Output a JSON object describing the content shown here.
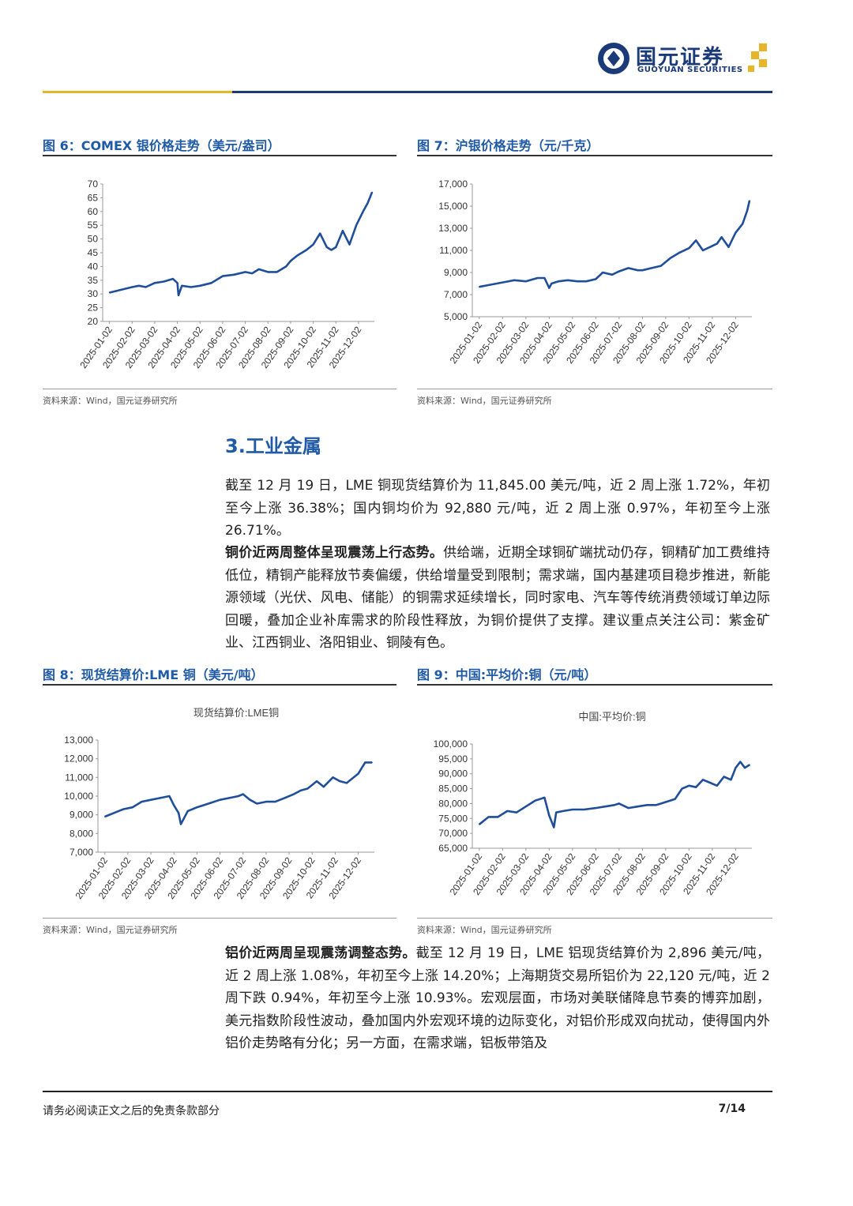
{
  "header": {
    "logo_cn": "国元证券",
    "logo_en": "GUOYUAN SECURITIES",
    "brand_color": "#1a3a78",
    "accent_color": "#e8b428"
  },
  "figures": {
    "fig6": {
      "title": "图 6：COMEX 银价格走势（美元/盎司）",
      "source": "资料来源：Wind，国元证券研究所"
    },
    "fig7": {
      "title": "图 7：沪银价格走势（元/千克）",
      "source": "资料来源：Wind，国元证券研究所"
    },
    "fig8": {
      "title": "图 8：现货结算价:LME 铜（美元/吨）",
      "source": "资料来源：Wind，国元证券研究所"
    },
    "fig9": {
      "title": "图 9：中国:平均价:铜（元/吨）",
      "source": "资料来源：Wind，国元证券研究所"
    }
  },
  "section": {
    "title": "3.工业金属"
  },
  "paragraphs": {
    "p1": "截至 12 月 19 日，LME 铜现货结算价为 11,845.00 美元/吨，近 2 周上涨 1.72%，年初至今上涨 36.38%；国内铜均价为 92,880 元/吨，近 2 周上涨 0.97%，年初至今上涨 26.71%。",
    "p2_bold": "铜价近两周整体呈现震荡上行态势。",
    "p2_rest": "供给端，近期全球铜矿端扰动仍存，铜精矿加工费维持低位，精铜产能释放节奏偏缓，供给增量受到限制；需求端，国内基建项目稳步推进，新能源领域（光伏、风电、储能）的铜需求延续增长，同时家电、汽车等传统消费领域订单边际回暖，叠加企业补库需求的阶段性释放，为铜价提供了支撑。建议重点关注公司：紫金矿业、江西铜业、洛阳钼业、铜陵有色。",
    "p3_bold": "铝价近两周呈现震荡调整态势。",
    "p3_rest": "截至 12 月 19 日，LME 铝现货结算价为 2,896 美元/吨，近 2 周上涨 1.08%，年初至今上涨 14.20%；上海期货交易所铝价为 22,120 元/吨，近 2 周下跌 0.94%，年初至今上涨 10.93%。宏观层面，市场对美联储降息节奏的博弈加剧，美元指数阶段性波动，叠加国内外宏观环境的边际变化，对铝价形成双向扰动，使得国内外铝价走势略有分化；另一方面，在需求端，铝板带箔及"
  },
  "footer": {
    "disclaimer": "请务必阅读正文之后的免责条款部分",
    "page": "7/14"
  },
  "chart_data": [
    {
      "id": "fig6",
      "type": "line",
      "title": "",
      "x_ticks": [
        "2025-01-02",
        "2025-02-02",
        "2025-03-02",
        "2025-04-02",
        "2025-05-02",
        "2025-06-02",
        "2025-07-02",
        "2025-08-02",
        "2025-09-02",
        "2025-10-02",
        "2025-11-02",
        "2025-12-02"
      ],
      "y_ticks": [
        "70",
        "65",
        "60",
        "55",
        "50",
        "45",
        "40",
        "35",
        "30",
        "25",
        "20"
      ],
      "ylim": [
        20,
        70
      ],
      "color": "#1f4e9a",
      "x": [
        0,
        0.5,
        1,
        1.3,
        1.6,
        2,
        2.4,
        2.8,
        3.0,
        3.05,
        3.2,
        3.6,
        4,
        4.5,
        5,
        5.5,
        6,
        6.3,
        6.6,
        7,
        7.4,
        7.8,
        8,
        8.3,
        8.7,
        9,
        9.3,
        9.6,
        9.8,
        10,
        10.3,
        10.6,
        10.9,
        11.2,
        11.4,
        11.6
      ],
      "y": [
        30.5,
        31.5,
        32.5,
        33,
        32.5,
        34,
        34.5,
        35.5,
        34,
        29.5,
        33,
        32.5,
        33,
        34,
        36.5,
        37,
        38,
        37.5,
        39,
        38,
        38,
        40,
        42,
        44,
        46,
        48,
        52,
        47,
        46,
        47,
        53,
        48,
        55,
        60,
        63,
        67
      ],
      "series": [
        {
          "name": ""
        }
      ]
    },
    {
      "id": "fig7",
      "type": "line",
      "title": "",
      "x_ticks": [
        "2025-01-02",
        "2025-02-02",
        "2025-03-02",
        "2025-04-02",
        "2025-05-02",
        "2025-06-02",
        "2025-07-02",
        "2025-08-02",
        "2025-09-02",
        "2025-10-02",
        "2025-11-02",
        "2025-12-02"
      ],
      "y_ticks": [
        "17,000",
        "15,000",
        "13,000",
        "11,000",
        "9,000",
        "7,000",
        "5,000"
      ],
      "ylim": [
        5000,
        17000
      ],
      "color": "#1f4e9a",
      "x": [
        0,
        0.5,
        1,
        1.5,
        2,
        2.5,
        2.8,
        3.0,
        3.1,
        3.4,
        3.8,
        4.2,
        4.6,
        5,
        5.3,
        5.7,
        6,
        6.4,
        6.8,
        7,
        7.4,
        7.8,
        8.2,
        8.6,
        9,
        9.3,
        9.6,
        9.9,
        10.2,
        10.4,
        10.7,
        11,
        11.3,
        11.5,
        11.6
      ],
      "y": [
        7700,
        7900,
        8100,
        8300,
        8200,
        8500,
        8500,
        7600,
        8000,
        8200,
        8300,
        8200,
        8200,
        8400,
        9000,
        8800,
        9100,
        9400,
        9200,
        9200,
        9400,
        9600,
        10300,
        10800,
        11200,
        11900,
        11000,
        11300,
        11600,
        12200,
        11300,
        12600,
        13400,
        14600,
        15500
      ],
      "series": [
        {
          "name": ""
        }
      ]
    },
    {
      "id": "fig8",
      "type": "line",
      "title": "现货结算价:LME铜",
      "x_ticks": [
        "2025-01-02",
        "2025-02-02",
        "2025-03-02",
        "2025-04-02",
        "2025-05-02",
        "2025-06-02",
        "2025-07-02",
        "2025-08-02",
        "2025-09-02",
        "2025-10-02",
        "2025-11-02",
        "2025-12-02"
      ],
      "y_ticks": [
        "13,000",
        "12,000",
        "11,000",
        "10,000",
        "9,000",
        "8,000",
        "7,000"
      ],
      "ylim": [
        7000,
        13000
      ],
      "color": "#1f4e9a",
      "x": [
        0,
        0.4,
        0.8,
        1.2,
        1.6,
        2,
        2.4,
        2.8,
        3.0,
        3.2,
        3.3,
        3.6,
        4,
        4.5,
        5,
        5.4,
        5.8,
        6,
        6.3,
        6.6,
        7,
        7.4,
        7.8,
        8.2,
        8.5,
        8.8,
        9.2,
        9.5,
        9.9,
        10.2,
        10.5,
        10.8,
        11,
        11.3,
        11.6
      ],
      "y": [
        8900,
        9100,
        9300,
        9400,
        9700,
        9800,
        9900,
        10000,
        9500,
        9100,
        8500,
        9200,
        9400,
        9600,
        9800,
        9900,
        10000,
        10100,
        9800,
        9600,
        9700,
        9700,
        9900,
        10100,
        10300,
        10400,
        10800,
        10500,
        11000,
        10800,
        10700,
        11000,
        11200,
        11800,
        11800
      ],
      "series": [
        {
          "name": ""
        }
      ]
    },
    {
      "id": "fig9",
      "type": "line",
      "title": "中国:平均价:铜",
      "x_ticks": [
        "2025-01-02",
        "2025-02-02",
        "2025-03-02",
        "2025-04-02",
        "2025-05-02",
        "2025-06-02",
        "2025-07-02",
        "2025-08-02",
        "2025-09-02",
        "2025-10-02",
        "2025-11-02",
        "2025-12-02"
      ],
      "y_ticks": [
        "100,000",
        "95,000",
        "90,000",
        "85,000",
        "80,000",
        "75,000",
        "70,000",
        "65,000"
      ],
      "ylim": [
        65000,
        100000
      ],
      "color": "#1f4e9a",
      "x": [
        0,
        0.4,
        0.8,
        1.2,
        1.6,
        2,
        2.4,
        2.8,
        3.0,
        3.2,
        3.3,
        3.6,
        4,
        4.5,
        5,
        5.4,
        5.8,
        6,
        6.4,
        6.8,
        7.2,
        7.6,
        8,
        8.4,
        8.7,
        9,
        9.3,
        9.6,
        9.9,
        10.2,
        10.5,
        10.8,
        11,
        11.2,
        11.4,
        11.6
      ],
      "y": [
        73000,
        75500,
        75500,
        77500,
        77000,
        79000,
        81000,
        82000,
        76000,
        72000,
        77000,
        77500,
        78000,
        78000,
        78500,
        79000,
        79500,
        80000,
        78500,
        79000,
        79500,
        79500,
        80500,
        81500,
        85000,
        86000,
        85500,
        88000,
        87000,
        86000,
        89000,
        88000,
        92000,
        94000,
        92000,
        93000
      ],
      "series": [
        {
          "name": ""
        }
      ]
    }
  ]
}
